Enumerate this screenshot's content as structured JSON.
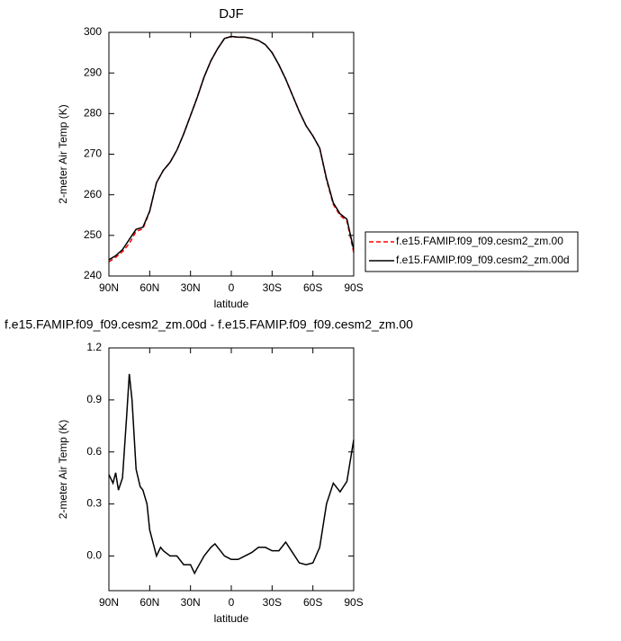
{
  "chart_data": [
    {
      "type": "line",
      "title": "DJF",
      "xlabel": "latitude",
      "ylabel": "2-meter Air Temp (K)",
      "x": [
        90,
        85,
        80,
        75,
        70,
        65,
        60,
        55,
        50,
        45,
        40,
        35,
        30,
        25,
        20,
        15,
        10,
        5,
        0,
        -5,
        -10,
        -15,
        -20,
        -25,
        -30,
        -35,
        -40,
        -45,
        -50,
        -55,
        -60,
        -65,
        -70,
        -75,
        -80,
        -85,
        -90
      ],
      "series": [
        {
          "name": "f.e15.FAMIP.f09_f09.cesm2_zm.00",
          "color": "#ff0000",
          "dash": true,
          "values": [
            243.5,
            244.6,
            246,
            248,
            251,
            251.6,
            255.9,
            263,
            266,
            268,
            271,
            275,
            279.5,
            284.1,
            289,
            293,
            296,
            298.5,
            299,
            298.8,
            298.8,
            298.5,
            298,
            297,
            295,
            292,
            288.5,
            284.5,
            280.5,
            277,
            274.5,
            271.5,
            263.7,
            257.6,
            254.9,
            253.6,
            245.8
          ]
        },
        {
          "name": "f.e15.FAMIP.f09_f09.cesm2_zm.00d",
          "color": "#000000",
          "dash": false,
          "values": [
            244,
            245,
            246.5,
            249,
            251.5,
            252,
            256,
            263,
            266,
            268,
            271,
            275,
            279.5,
            284,
            289,
            293,
            296,
            298.5,
            299,
            298.8,
            298.8,
            298.5,
            298,
            297,
            295,
            292,
            288.5,
            284.5,
            280.5,
            277,
            274.5,
            271.5,
            264,
            258,
            255.3,
            254,
            246.5
          ]
        }
      ],
      "xlim": [
        90,
        -90
      ],
      "xticks": [
        {
          "value": 90,
          "label": "90N"
        },
        {
          "value": 60,
          "label": "60N"
        },
        {
          "value": 30,
          "label": "30N"
        },
        0,
        {
          "value": -30,
          "label": "30S"
        },
        {
          "value": -60,
          "label": "60S"
        },
        {
          "value": -90,
          "label": "90S"
        }
      ],
      "ylim": [
        240,
        300
      ],
      "yticks": [
        240,
        250,
        260,
        270,
        280,
        290,
        300
      ],
      "legend": "right"
    },
    {
      "type": "line",
      "title": "f.e15.FAMIP.f09_f09.cesm2_zm.00d - f.e15.FAMIP.f09_f09.cesm2_zm.00",
      "xlabel": "latitude",
      "ylabel": "2-meter Air Temp (K)",
      "x": [
        90,
        87,
        85,
        83,
        80,
        77,
        75,
        73,
        70,
        67,
        65,
        62,
        60,
        55,
        52,
        50,
        45,
        40,
        35,
        30,
        27,
        25,
        20,
        15,
        12,
        10,
        5,
        0,
        -5,
        -10,
        -15,
        -20,
        -25,
        -30,
        -35,
        -40,
        -45,
        -50,
        -55,
        -60,
        -65,
        -70,
        -75,
        -80,
        -85,
        -90
      ],
      "values": [
        0.47,
        0.42,
        0.48,
        0.38,
        0.45,
        0.8,
        1.05,
        0.9,
        0.5,
        0.4,
        0.38,
        0.3,
        0.15,
        0.0,
        0.05,
        0.03,
        0.0,
        0.0,
        -0.05,
        -0.05,
        -0.1,
        -0.07,
        0.0,
        0.05,
        0.07,
        0.05,
        0.0,
        -0.02,
        -0.02,
        0.0,
        0.02,
        0.05,
        0.05,
        0.03,
        0.03,
        0.08,
        0.02,
        -0.04,
        -0.05,
        -0.04,
        0.05,
        0.3,
        0.42,
        0.37,
        0.43,
        0.67
      ],
      "color": "#000000",
      "xlim": [
        90,
        -90
      ],
      "xticks": [
        {
          "value": 90,
          "label": "90N"
        },
        {
          "value": 60,
          "label": "60N"
        },
        {
          "value": 30,
          "label": "30N"
        },
        0,
        {
          "value": -30,
          "label": "30S"
        },
        {
          "value": -60,
          "label": "60S"
        },
        {
          "value": -90,
          "label": "90S"
        }
      ],
      "ylim": [
        -0.2,
        1.2
      ],
      "yticks": [
        {
          "value": 0,
          "label": "0.0"
        },
        0.3,
        0.6,
        0.9,
        1.2
      ]
    }
  ]
}
